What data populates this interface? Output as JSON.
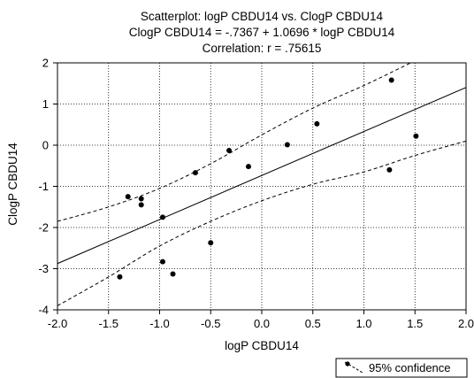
{
  "chart_data": {
    "type": "scatter",
    "title": [
      "Scatterplot: logP CBDU14 vs. ClogP CBDU14",
      "ClogP CBDU14 = -.7367 + 1.0696 * logP CBDU14",
      "Correlation: r = .75615"
    ],
    "xlabel": "logP CBDU14",
    "ylabel": "ClogP CBDU14",
    "xlim": [
      -2.0,
      2.0
    ],
    "ylim": [
      -4,
      2
    ],
    "x_ticks": [
      -2.0,
      -1.5,
      -1.0,
      -0.5,
      0.0,
      0.5,
      1.0,
      1.5,
      2.0
    ],
    "x_tick_labels": [
      "-2.0",
      "-1.5",
      "-1.0",
      "-0.5",
      "0.0",
      "0.5",
      "1.0",
      "1.5",
      "2.0"
    ],
    "y_ticks": [
      -4,
      -3,
      -2,
      -1,
      0,
      1,
      2
    ],
    "y_tick_labels": [
      "-4",
      "-3",
      "-2",
      "-1",
      "0",
      "1",
      "2"
    ],
    "grid": true,
    "points": [
      {
        "x": -1.39,
        "y": -3.2
      },
      {
        "x": -1.31,
        "y": -1.25
      },
      {
        "x": -1.18,
        "y": -1.3
      },
      {
        "x": -1.18,
        "y": -1.45
      },
      {
        "x": -0.97,
        "y": -1.75
      },
      {
        "x": -0.97,
        "y": -2.83
      },
      {
        "x": -0.87,
        "y": -3.13
      },
      {
        "x": -0.65,
        "y": -0.67
      },
      {
        "x": -0.5,
        "y": -2.37
      },
      {
        "x": -0.32,
        "y": -0.13
      },
      {
        "x": -0.13,
        "y": -0.52
      },
      {
        "x": 0.25,
        "y": 0.01
      },
      {
        "x": 0.54,
        "y": 0.52
      },
      {
        "x": 1.25,
        "y": -0.6
      },
      {
        "x": 1.27,
        "y": 1.58
      },
      {
        "x": 1.51,
        "y": 0.22
      }
    ],
    "regression": {
      "intercept": -0.7367,
      "slope": 1.0696
    },
    "confidence_band": {
      "x": [
        -2.0,
        -1.5,
        -1.0,
        -0.5,
        0.0,
        0.5,
        1.0,
        1.5,
        2.0
      ],
      "upper": [
        -1.85,
        -1.5,
        -1.05,
        -0.45,
        0.25,
        0.9,
        1.45,
        2.05,
        2.65
      ],
      "lower": [
        -3.9,
        -3.2,
        -2.45,
        -1.85,
        -1.35,
        -0.95,
        -0.65,
        -0.25,
        0.1
      ]
    },
    "legend": {
      "label": "95% confidence",
      "position": "bottom-right"
    }
  }
}
